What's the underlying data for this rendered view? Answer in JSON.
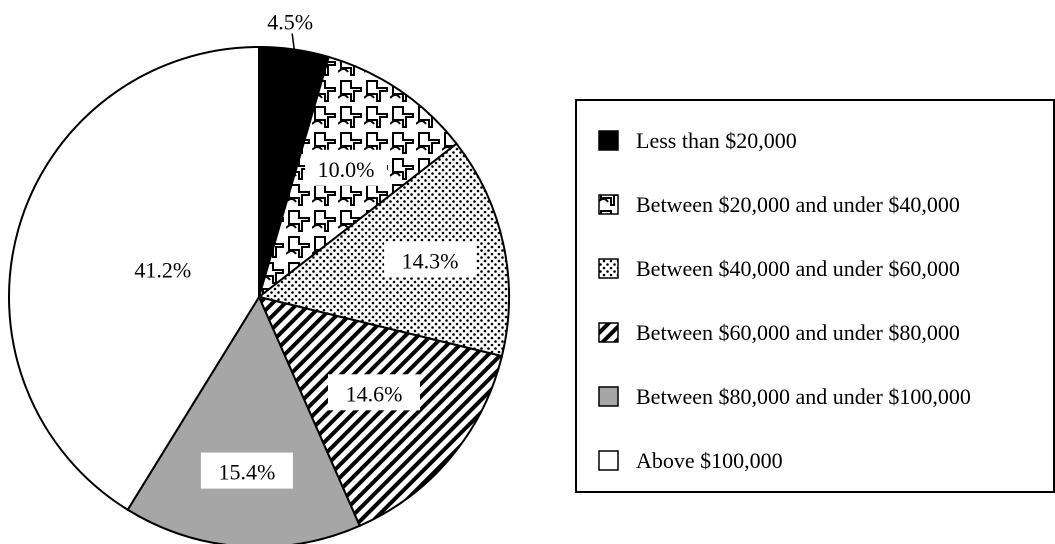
{
  "chart_data": {
    "type": "pie",
    "title": "",
    "slices": [
      {
        "label": "Less than $20,000",
        "value": 4.5,
        "display": "4.5%",
        "pattern": "solid-black"
      },
      {
        "label": "Between $20,000 and under $40,000",
        "value": 10.0,
        "display": "10.0%",
        "pattern": "interlocking-weave"
      },
      {
        "label": "Between $40,000 and under $60,000",
        "value": 14.3,
        "display": "14.3%",
        "pattern": "dots"
      },
      {
        "label": "Between $60,000 and under $80,000",
        "value": 14.6,
        "display": "14.6%",
        "pattern": "diagonal-stripes"
      },
      {
        "label": "Between $80,000 and under $100,000",
        "value": 15.4,
        "display": "15.4%",
        "pattern": "solid-gray"
      },
      {
        "label": "Above $100,000",
        "value": 41.2,
        "display": "41.2%",
        "pattern": "solid-white"
      }
    ],
    "start_angle": "12 o'clock",
    "direction": "clockwise",
    "legend_position": "right",
    "colors": {
      "black": "#000000",
      "gray": "#a6a6a6",
      "white": "#ffffff",
      "outline": "#000000"
    }
  }
}
